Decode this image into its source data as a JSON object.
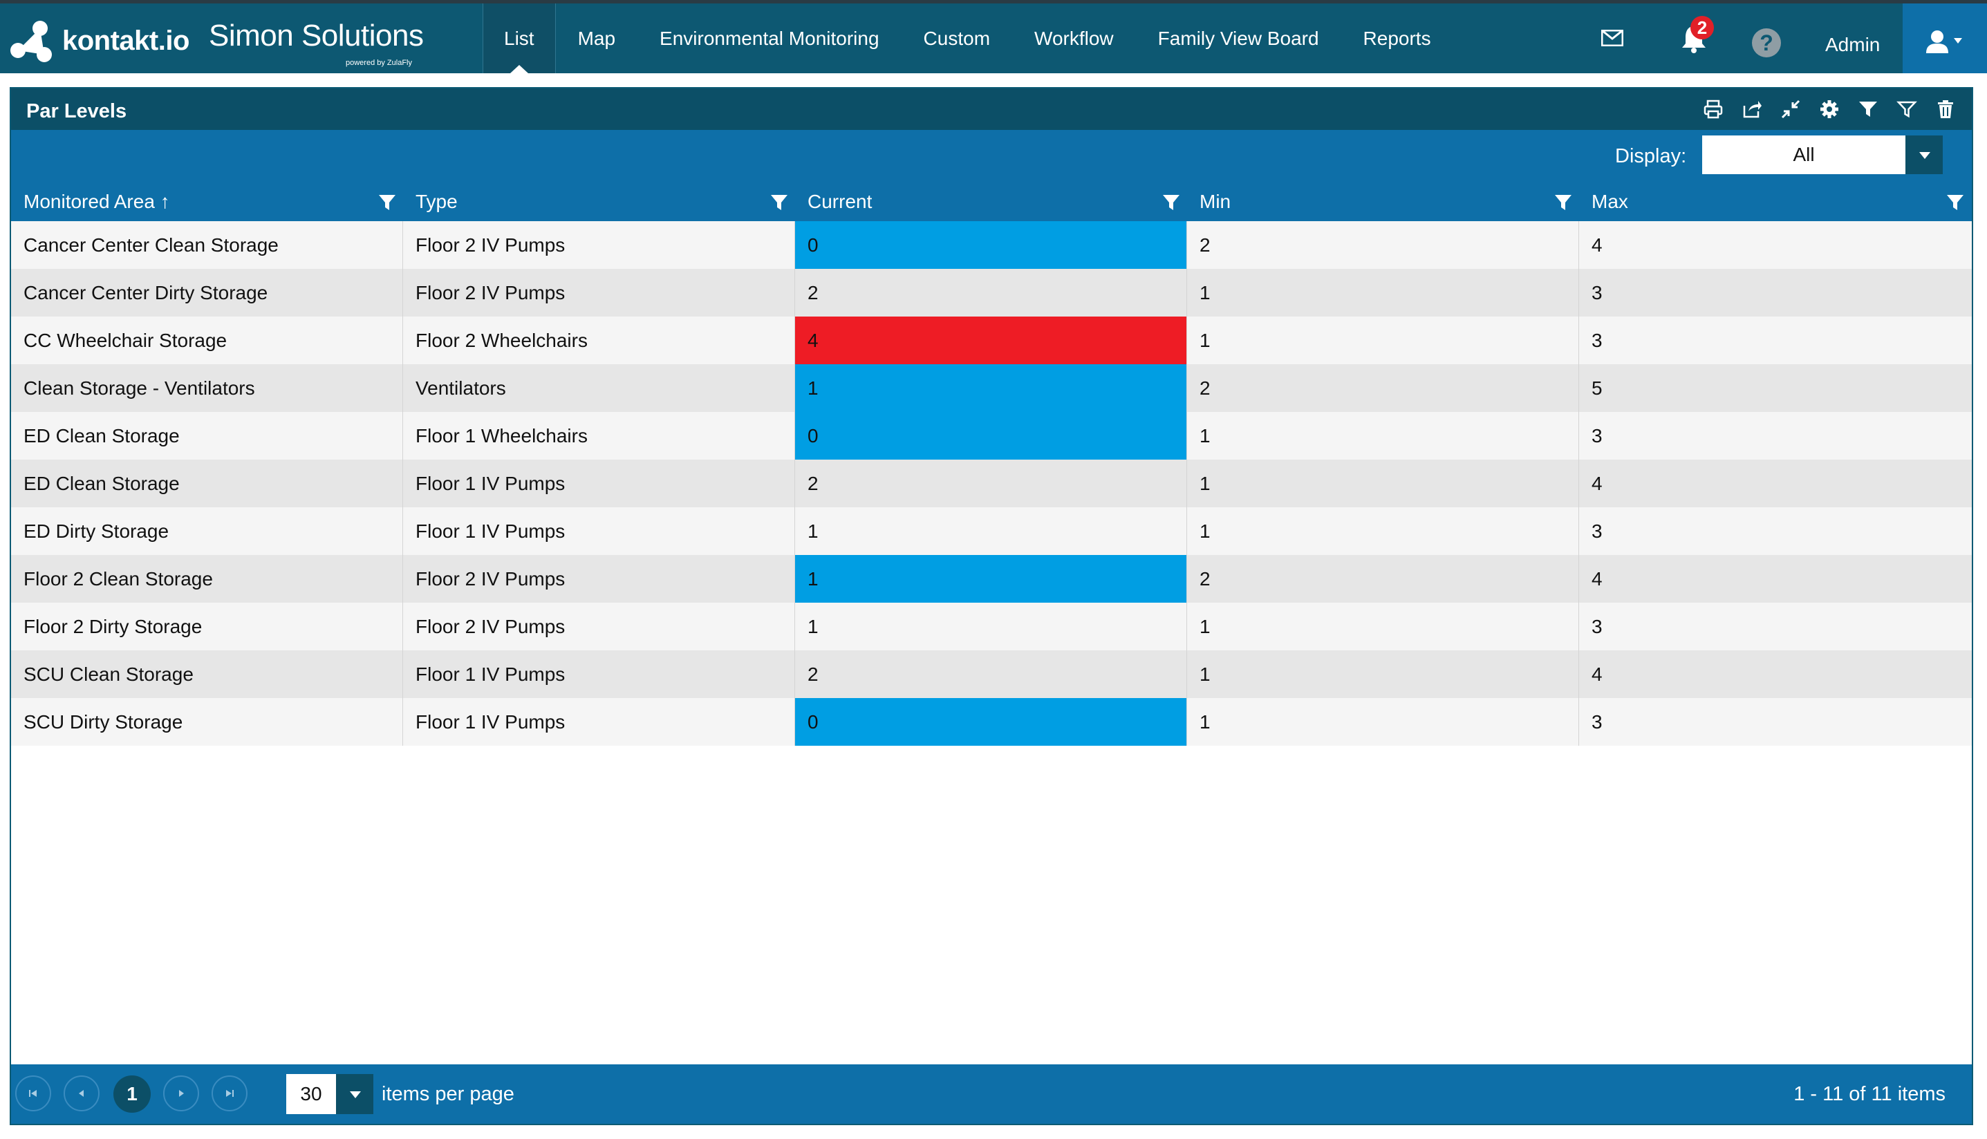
{
  "header": {
    "logo_text": "kontakt.io",
    "brand_name": "Simon Solutions",
    "brand_tagline": "powered by ZulaFly",
    "nav": [
      {
        "label": "List",
        "active": true
      },
      {
        "label": "Map"
      },
      {
        "label": "Environmental Monitoring"
      },
      {
        "label": "Custom"
      },
      {
        "label": "Workflow"
      },
      {
        "label": "Family View Board"
      },
      {
        "label": "Reports"
      }
    ],
    "notification_count": "2",
    "help_glyph": "?",
    "user_label": "Admin",
    "icons": [
      "mail-icon",
      "bell-icon",
      "help-icon",
      "user-icon"
    ]
  },
  "panel": {
    "title": "Par Levels",
    "toolbar_icons": [
      "print-icon",
      "export-icon",
      "collapse-icon",
      "gear-icon",
      "filter-icon",
      "filter-outline-icon",
      "trash-icon"
    ],
    "display_label": "Display:",
    "display_value": "All"
  },
  "grid": {
    "columns": [
      "Monitored Area ↑",
      "Type",
      "Current",
      "Min",
      "Max"
    ],
    "rows": [
      {
        "area": "Cancer Center Clean Storage",
        "type": "Floor 2 IV Pumps",
        "current": "0",
        "min": "2",
        "max": "4",
        "status": "low"
      },
      {
        "area": "Cancer Center Dirty Storage",
        "type": "Floor 2 IV Pumps",
        "current": "2",
        "min": "1",
        "max": "3",
        "status": "ok"
      },
      {
        "area": "CC Wheelchair Storage",
        "type": "Floor 2 Wheelchairs",
        "current": "4",
        "min": "1",
        "max": "3",
        "status": "high"
      },
      {
        "area": "Clean Storage - Ventilators",
        "type": "Ventilators",
        "current": "1",
        "min": "2",
        "max": "5",
        "status": "low"
      },
      {
        "area": "ED Clean Storage",
        "type": "Floor 1 Wheelchairs",
        "current": "0",
        "min": "1",
        "max": "3",
        "status": "low"
      },
      {
        "area": "ED Clean Storage",
        "type": "Floor 1 IV Pumps",
        "current": "2",
        "min": "1",
        "max": "4",
        "status": "ok"
      },
      {
        "area": "ED Dirty Storage",
        "type": "Floor 1 IV Pumps",
        "current": "1",
        "min": "1",
        "max": "3",
        "status": "ok"
      },
      {
        "area": "Floor 2 Clean Storage",
        "type": "Floor 2 IV Pumps",
        "current": "1",
        "min": "2",
        "max": "4",
        "status": "low"
      },
      {
        "area": "Floor 2 Dirty Storage",
        "type": "Floor 2 IV Pumps",
        "current": "1",
        "min": "1",
        "max": "3",
        "status": "ok"
      },
      {
        "area": "SCU Clean Storage",
        "type": "Floor 1 IV Pumps",
        "current": "2",
        "min": "1",
        "max": "4",
        "status": "ok"
      },
      {
        "area": "SCU Dirty Storage",
        "type": "Floor 1 IV Pumps",
        "current": "0",
        "min": "1",
        "max": "3",
        "status": "low"
      }
    ],
    "status_colors": {
      "low": "#009ee3",
      "high": "#ee1c25"
    }
  },
  "pager": {
    "current_page": "1",
    "page_size": "30",
    "page_size_label": "items per page",
    "info": "1 - 11 of 11 items"
  }
}
